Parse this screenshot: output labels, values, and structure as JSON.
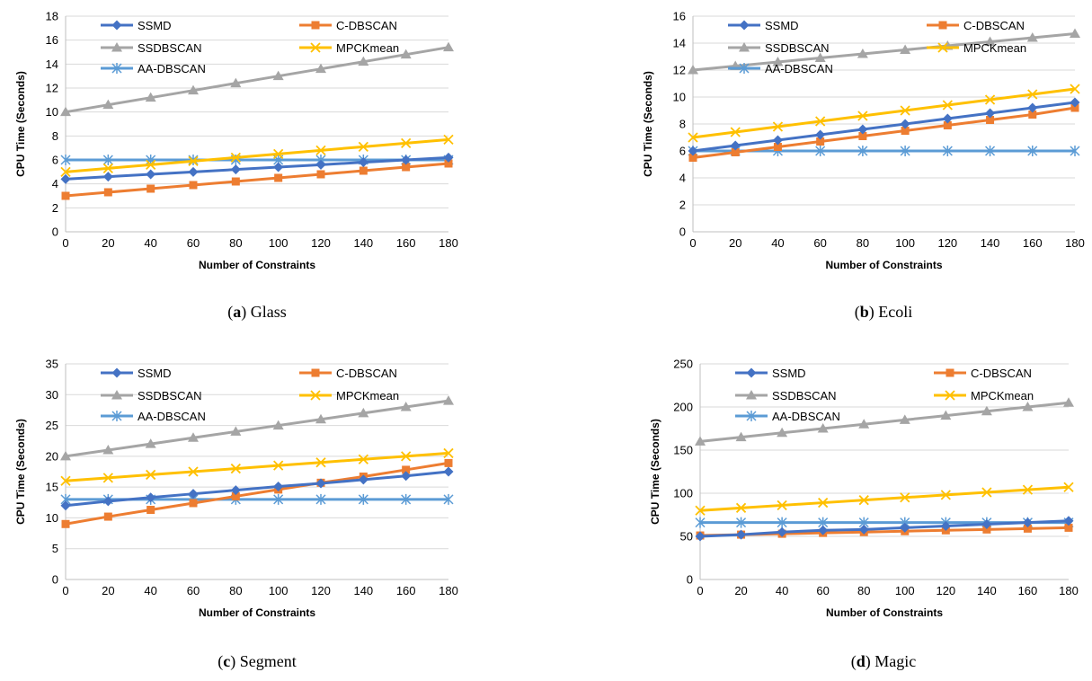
{
  "colors": {
    "SSMD": "#4472c4",
    "C-DBSCAN": "#ed7d31",
    "SSDBSCAN": "#a5a5a5",
    "MPCKmean": "#ffc000",
    "AA-DBSCAN": "#5b9bd5"
  },
  "chart_data": [
    {
      "type": "line",
      "caption_letter": "a",
      "caption_name": "Glass",
      "xlabel": "Number of Constraints",
      "ylabel": "CPU Time (Seconds)",
      "x": [
        0,
        20,
        40,
        60,
        80,
        100,
        120,
        140,
        160,
        180
      ],
      "ylim": [
        0,
        18
      ],
      "ystep": 2,
      "grid": true,
      "legend": "top",
      "series": [
        {
          "name": "SSMD",
          "marker": "diamond",
          "values": [
            4.4,
            4.6,
            4.8,
            5.0,
            5.2,
            5.4,
            5.6,
            5.8,
            6.0,
            6.2
          ]
        },
        {
          "name": "C-DBSCAN",
          "marker": "square",
          "values": [
            3.0,
            3.3,
            3.6,
            3.9,
            4.2,
            4.5,
            4.8,
            5.1,
            5.4,
            5.7
          ]
        },
        {
          "name": "SSDBSCAN",
          "marker": "triangle",
          "values": [
            10.0,
            10.6,
            11.2,
            11.8,
            12.4,
            13.0,
            13.6,
            14.2,
            14.8,
            15.4
          ]
        },
        {
          "name": "MPCKmean",
          "marker": "x",
          "values": [
            5.0,
            5.3,
            5.6,
            5.9,
            6.2,
            6.5,
            6.8,
            7.1,
            7.4,
            7.7
          ]
        },
        {
          "name": "AA-DBSCAN",
          "marker": "star",
          "values": [
            6.0,
            6.0,
            6.0,
            6.0,
            6.0,
            6.0,
            6.0,
            6.0,
            6.0,
            6.0
          ]
        }
      ]
    },
    {
      "type": "line",
      "caption_letter": "b",
      "caption_name": "Ecoli",
      "xlabel": "Number of Constraints",
      "ylabel": "CPU Time (Seconds)",
      "x": [
        0,
        20,
        40,
        60,
        80,
        100,
        120,
        140,
        160,
        180
      ],
      "ylim": [
        0,
        16
      ],
      "ystep": 2,
      "grid": true,
      "legend": "top",
      "series": [
        {
          "name": "SSMD",
          "marker": "diamond",
          "values": [
            6.0,
            6.4,
            6.8,
            7.2,
            7.6,
            8.0,
            8.4,
            8.8,
            9.2,
            9.6
          ]
        },
        {
          "name": "C-DBSCAN",
          "marker": "square",
          "values": [
            5.5,
            5.9,
            6.3,
            6.7,
            7.1,
            7.5,
            7.9,
            8.3,
            8.7,
            9.2
          ]
        },
        {
          "name": "SSDBSCAN",
          "marker": "triangle",
          "values": [
            12.0,
            12.3,
            12.6,
            12.9,
            13.2,
            13.5,
            13.8,
            14.1,
            14.4,
            14.7
          ]
        },
        {
          "name": "MPCKmean",
          "marker": "x",
          "values": [
            7.0,
            7.4,
            7.8,
            8.2,
            8.6,
            9.0,
            9.4,
            9.8,
            10.2,
            10.6
          ]
        },
        {
          "name": "AA-DBSCAN",
          "marker": "star",
          "values": [
            6.0,
            6.0,
            6.0,
            6.0,
            6.0,
            6.0,
            6.0,
            6.0,
            6.0,
            6.0
          ]
        }
      ]
    },
    {
      "type": "line",
      "caption_letter": "c",
      "caption_name": "Segment",
      "xlabel": "Number of Constraints",
      "ylabel": "CPU Time (Seconds)",
      "x": [
        0,
        20,
        40,
        60,
        80,
        100,
        120,
        140,
        160,
        180
      ],
      "ylim": [
        0,
        35
      ],
      "ystep": 5,
      "grid": true,
      "legend": "top",
      "series": [
        {
          "name": "SSMD",
          "marker": "diamond",
          "values": [
            12.0,
            12.7,
            13.3,
            13.9,
            14.5,
            15.1,
            15.6,
            16.2,
            16.8,
            17.5
          ]
        },
        {
          "name": "C-DBSCAN",
          "marker": "square",
          "values": [
            9.0,
            10.2,
            11.3,
            12.4,
            13.5,
            14.6,
            15.7,
            16.7,
            17.8,
            18.9
          ]
        },
        {
          "name": "SSDBSCAN",
          "marker": "triangle",
          "values": [
            20.0,
            21.0,
            22.0,
            23.0,
            24.0,
            25.0,
            26.0,
            27.0,
            28.0,
            29.0
          ]
        },
        {
          "name": "MPCKmean",
          "marker": "x",
          "values": [
            16.0,
            16.5,
            17.0,
            17.5,
            18.0,
            18.5,
            19.0,
            19.5,
            20.0,
            20.5
          ]
        },
        {
          "name": "AA-DBSCAN",
          "marker": "star",
          "values": [
            13.0,
            13.0,
            13.0,
            13.0,
            13.0,
            13.0,
            13.0,
            13.0,
            13.0,
            13.0
          ]
        }
      ]
    },
    {
      "type": "line",
      "caption_letter": "d",
      "caption_name": "Magic",
      "xlabel": "Number of Constraints",
      "ylabel": "CPU Time (Seconds)",
      "x": [
        0,
        20,
        40,
        60,
        80,
        100,
        120,
        140,
        160,
        180
      ],
      "ylim": [
        0,
        250
      ],
      "ystep": 50,
      "grid": true,
      "legend": "top",
      "series": [
        {
          "name": "SSMD",
          "marker": "diamond",
          "values": [
            50,
            52,
            55,
            57,
            58,
            60,
            62,
            64,
            66,
            68
          ]
        },
        {
          "name": "C-DBSCAN",
          "marker": "square",
          "values": [
            51,
            52,
            53,
            54,
            55,
            56,
            57,
            58,
            59,
            60
          ]
        },
        {
          "name": "SSDBSCAN",
          "marker": "triangle",
          "values": [
            160,
            165,
            170,
            175,
            180,
            185,
            190,
            195,
            200,
            205
          ]
        },
        {
          "name": "MPCKmean",
          "marker": "x",
          "values": [
            80,
            83,
            86,
            89,
            92,
            95,
            98,
            101,
            104,
            107
          ]
        },
        {
          "name": "AA-DBSCAN",
          "marker": "star",
          "values": [
            66,
            66,
            66,
            66,
            66,
            66,
            66,
            66,
            66,
            66
          ]
        }
      ]
    }
  ]
}
